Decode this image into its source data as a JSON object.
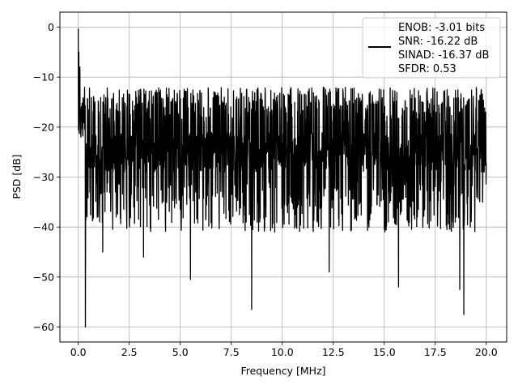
{
  "chart_data": {
    "type": "line",
    "title": "",
    "xlabel": "Frequency [MHz]",
    "ylabel": "PSD [dB]",
    "xlim": [
      -0.9,
      21.0
    ],
    "ylim": [
      -63,
      3
    ],
    "grid": true,
    "xticks": [
      0.0,
      2.5,
      5.0,
      7.5,
      10.0,
      12.5,
      15.0,
      17.5,
      20.0
    ],
    "xtick_labels": [
      "0.0",
      "2.5",
      "5.0",
      "7.5",
      "10.0",
      "12.5",
      "15.0",
      "17.5",
      "20.0"
    ],
    "yticks": [
      0,
      -10,
      -20,
      -30,
      -40,
      -50,
      -60
    ],
    "ytick_labels": [
      "0",
      "−10",
      "−20",
      "−30",
      "−40",
      "−50",
      "−60"
    ],
    "legend": {
      "placement": "top-right",
      "lines": [
        "ENOB: -3.01 bits",
        "SNR: -16.22 dB",
        "SINAD: -16.37 dB",
        "SFDR: 0.53"
      ]
    },
    "series": [
      {
        "color": "#000000",
        "x_range": [
          0.0,
          20.0
        ],
        "noise_floor_db": -25,
        "upper_envelope_db": -15,
        "lower_envelope_db": -38,
        "peak_points": [
          {
            "x": 0.0,
            "y": -0.3
          },
          {
            "x": 0.03,
            "y": -5
          },
          {
            "x": 0.08,
            "y": -8
          },
          {
            "x": 0.35,
            "y": -60
          },
          {
            "x": 1.2,
            "y": -45
          },
          {
            "x": 3.2,
            "y": -46
          },
          {
            "x": 5.5,
            "y": -50.5
          },
          {
            "x": 8.5,
            "y": -56.5
          },
          {
            "x": 12.3,
            "y": -49
          },
          {
            "x": 15.7,
            "y": -52
          },
          {
            "x": 18.9,
            "y": -57.5
          },
          {
            "x": 18.7,
            "y": -52.5
          }
        ]
      }
    ]
  }
}
